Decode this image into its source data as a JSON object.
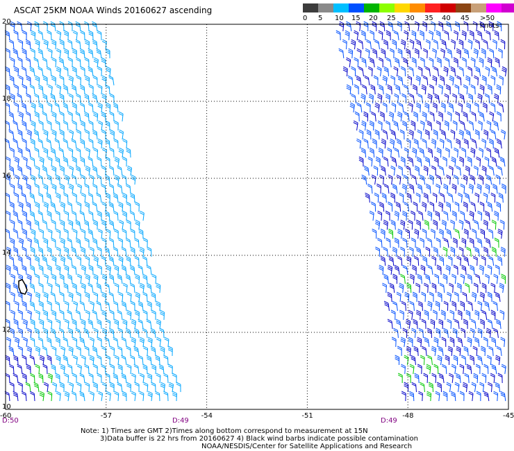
{
  "title": "ASCAT 25KM NOAA Winds 20160627 ascending",
  "colorbar": {
    "colors": [
      "#3c3c3c",
      "#8a8a8a",
      "#00bfff",
      "#0050ff",
      "#00b400",
      "#8cff00",
      "#ffd700",
      "#ff8c00",
      "#ff2020",
      "#d00000",
      "#8b4513",
      "#c8a078",
      "#ff00ff",
      "#d000d0",
      "#400080"
    ],
    "labels": [
      "0",
      "5",
      "10",
      "15",
      "20",
      "25",
      "30",
      "35",
      "40",
      "45",
      ">50 knots"
    ]
  },
  "map": {
    "lat_labels": [
      "20",
      "18",
      "16",
      "14",
      "12",
      "10"
    ],
    "lon_labels": [
      "-60",
      "-57",
      "-54",
      "-51",
      "-48",
      "-45"
    ],
    "time_labels": [
      "D:50",
      "D:49",
      "D:49"
    ],
    "barb_colors": {
      "10-15": "#0050ff",
      "15-20": "#0000c8",
      "5-10": "#00a5ff",
      "low": "#00c800"
    },
    "island": "Barbados outline"
  },
  "notes": {
    "line1": "Note: 1) Times are GMT 2)Times along bottom correspond to measurement at 15N",
    "line2": "3)Data buffer is 22 hrs from 20160627 4) Black wind barbs indicate possible contamination",
    "line3": "NOAA/NESDIS/Center for Satellite Applications and Research"
  }
}
